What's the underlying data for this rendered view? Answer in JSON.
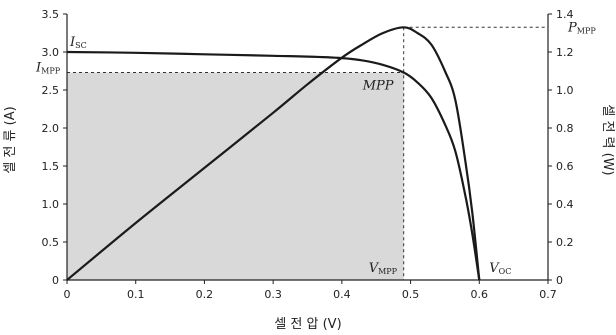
{
  "chart_data": {
    "type": "line",
    "xlabel": "셀 전 압 (V)",
    "ylabel_left": "셀 전 류 (A)",
    "ylabel_right": "셀 전 력 (W)",
    "xlim": [
      0,
      0.7
    ],
    "ylim_left": [
      0,
      3.5
    ],
    "ylim_right": [
      0,
      1.4
    ],
    "x_ticks": [
      "0",
      "0.1",
      "0.2",
      "0.3",
      "0.4",
      "0.5",
      "0.6",
      "0.7"
    ],
    "y_ticks_left": [
      "0",
      "0.5",
      "1.0",
      "1.5",
      "2.0",
      "2.5",
      "3.0",
      "3.5"
    ],
    "y_ticks_right": [
      "0",
      "0.2",
      "0.4",
      "0.6",
      "0.8",
      "1.0",
      "1.2",
      "1.4"
    ],
    "grid": false,
    "series": [
      {
        "axis": "left",
        "x": [
          0,
          0.1,
          0.2,
          0.3,
          0.35,
          0.4,
          0.43,
          0.46,
          0.49,
          0.51,
          0.53,
          0.55,
          0.565,
          0.58,
          0.59,
          0.6
        ],
        "y": [
          3.0,
          2.99,
          2.97,
          2.95,
          2.94,
          2.92,
          2.89,
          2.83,
          2.73,
          2.6,
          2.4,
          2.05,
          1.7,
          1.1,
          0.6,
          0
        ]
      },
      {
        "axis": "right",
        "x": [
          0,
          0.1,
          0.2,
          0.3,
          0.35,
          0.4,
          0.43,
          0.46,
          0.49,
          0.51,
          0.53,
          0.55,
          0.565,
          0.58,
          0.59,
          0.6
        ],
        "y": [
          0,
          0.3,
          0.59,
          0.88,
          1.03,
          1.17,
          1.24,
          1.3,
          1.33,
          1.3,
          1.24,
          1.1,
          0.95,
          0.62,
          0.35,
          0
        ]
      }
    ],
    "mpp": {
      "v": 0.49,
      "i": 2.73,
      "p": 1.33
    },
    "isc": 3.0,
    "voc": 0.6,
    "annotations": {
      "isc": {
        "main": "I",
        "sub": "SC"
      },
      "impp": {
        "main": "I",
        "sub": "MPP"
      },
      "pmpp": {
        "main": "P",
        "sub": "MPP"
      },
      "vmpp": {
        "main": "V",
        "sub": "MPP"
      },
      "voc": {
        "main": "V",
        "sub": "OC"
      },
      "mpp": "MPP"
    },
    "colors": {
      "curve": "#1a1a1a",
      "shade": "#d9d9d9",
      "axis": "#222222",
      "dash": "#333333"
    }
  }
}
